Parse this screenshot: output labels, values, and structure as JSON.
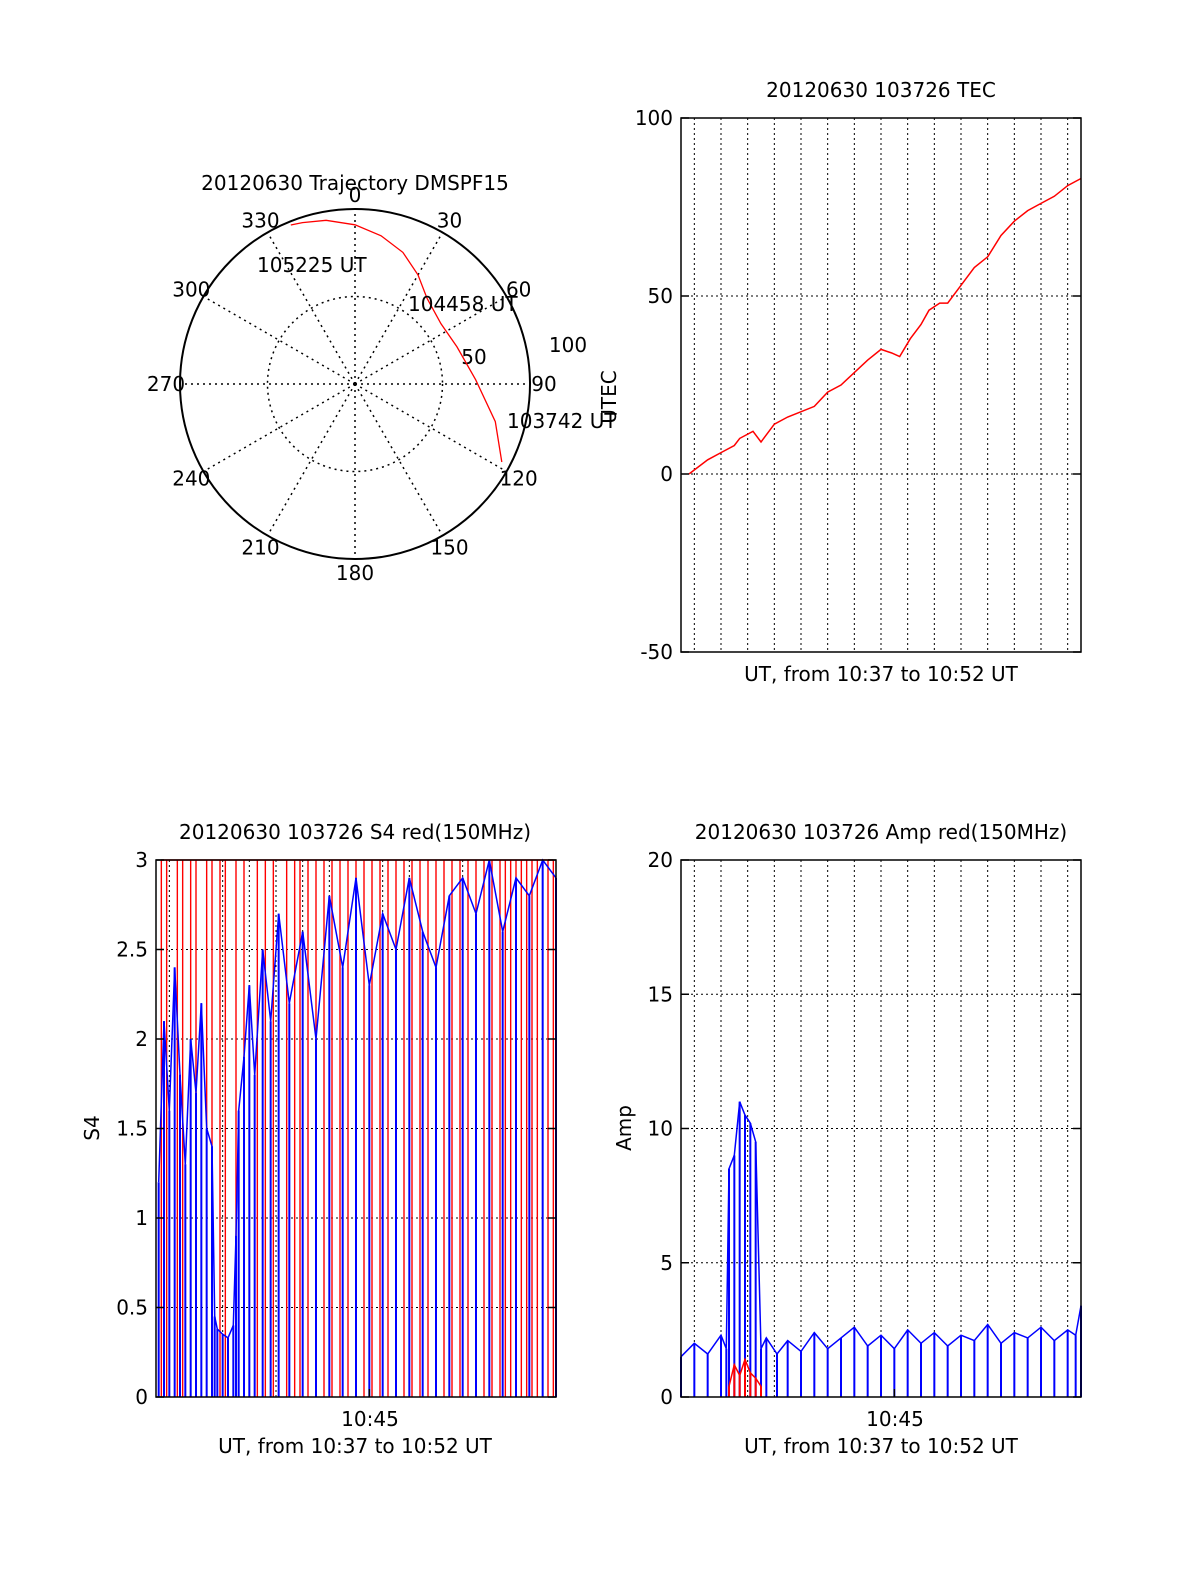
{
  "colors": {
    "primary": "#ff0000",
    "secondary": "#0000ff",
    "axis": "#000000"
  },
  "chart_data": [
    {
      "type": "polar",
      "title": "20120630 Trajectory DMSPF15",
      "angle_ticks": [
        "0",
        "30",
        "60",
        "90",
        "120",
        "150",
        "180",
        "210",
        "240",
        "270",
        "300",
        "330"
      ],
      "radial_ticks": [
        "50",
        "100"
      ],
      "rmax": 100,
      "grid": true,
      "series": [
        {
          "color": "#ff0000",
          "points": [
            [
              118,
              95
            ],
            [
              105,
              83
            ],
            [
              88,
              69
            ],
            [
              70,
              62
            ],
            [
              55,
              60
            ],
            [
              40,
              64
            ],
            [
              30,
              72
            ],
            [
              20,
              80
            ],
            [
              10,
              86
            ],
            [
              0,
              91
            ],
            [
              -10,
              95
            ],
            [
              -18,
              97
            ],
            [
              -22,
              98
            ]
          ]
        }
      ],
      "annotations": [
        {
          "text": "103742 UT",
          "az": 118,
          "r": 95
        },
        {
          "text": "104458 UT",
          "az": 60,
          "r": 60
        },
        {
          "text": "105225 UT",
          "az": -22,
          "r": 98
        }
      ]
    },
    {
      "type": "line",
      "title": "20120630 103726 TEC",
      "xlabel": "UT, from 10:37 to 10:52 UT",
      "ylabel": "UTEC",
      "xlim": [
        0,
        15
      ],
      "ylim": [
        -50,
        100
      ],
      "yticks": [
        "-50",
        "0",
        "50",
        "100"
      ],
      "grid": true,
      "series": [
        {
          "color": "#ff0000",
          "x": [
            0.3,
            1.0,
            1.5,
            2.0,
            2.2,
            2.7,
            3.0,
            3.5,
            4.0,
            5.0,
            5.5,
            6.0,
            7.0,
            7.5,
            7.9,
            8.2,
            8.6,
            9.0,
            9.3,
            9.7,
            10.0,
            10.5,
            11.0,
            11.5,
            12.0,
            12.5,
            13.0,
            13.5,
            14.0,
            14.5,
            15.0
          ],
          "y": [
            0,
            4,
            6,
            8,
            10,
            12,
            9,
            14,
            16,
            19,
            23,
            25,
            32,
            35,
            34,
            33,
            38,
            42,
            46,
            48,
            48,
            53,
            58,
            61,
            67,
            71,
            74,
            76,
            78,
            81,
            83
          ]
        }
      ]
    },
    {
      "type": "line",
      "title": "20120630 103726 S4 red(150MHz)",
      "xlabel": "UT, from 10:37 to 10:52 UT",
      "ylabel": "S4",
      "xlim": [
        0,
        15
      ],
      "ylim": [
        0,
        3
      ],
      "yticks": [
        "0",
        "0.5",
        "1",
        "1.5",
        "2",
        "2.5",
        "3"
      ],
      "xtick_label": "10:45",
      "xtick_value": 8,
      "grid": true,
      "series": [
        {
          "color": "#ff0000",
          "x": [
            0.2,
            0.4,
            0.8,
            1.0,
            1.3,
            1.5,
            1.9,
            2.1,
            2.4,
            2.6,
            3.0,
            3.3,
            3.8,
            4.1,
            4.4,
            4.9,
            5.2,
            5.4,
            5.7,
            6.0,
            6.3,
            6.6,
            6.9,
            7.2,
            7.5,
            7.8,
            8.1,
            8.4,
            8.7,
            9.0,
            9.3,
            9.6,
            9.9,
            10.2,
            10.5,
            10.8,
            11.1,
            11.4,
            11.7,
            12.0,
            12.3,
            12.6,
            12.9,
            13.1,
            13.3,
            13.5,
            13.7,
            13.9,
            14.1,
            14.3,
            14.5,
            14.7,
            14.9
          ],
          "y": [
            3.0,
            3.0,
            3.0,
            3.0,
            3.0,
            3.0,
            3.0,
            3.0,
            3.0,
            3.0,
            3.0,
            3.0,
            3.0,
            3.0,
            3.0,
            3.0,
            3.0,
            3.0,
            3.0,
            3.0,
            3.0,
            3.0,
            3.0,
            3.0,
            3.0,
            3.0,
            3.0,
            3.0,
            3.0,
            3.0,
            3.0,
            3.0,
            3.0,
            3.0,
            3.0,
            3.0,
            3.0,
            3.0,
            3.0,
            3.0,
            3.0,
            3.0,
            3.0,
            3.0,
            3.0,
            3.0,
            3.0,
            3.0,
            3.0,
            3.0,
            3.0,
            3.0,
            3.0
          ]
        },
        {
          "color": "#0000ff",
          "x": [
            0.1,
            0.3,
            0.5,
            0.7,
            0.9,
            1.1,
            1.3,
            1.5,
            1.7,
            1.9,
            2.1,
            2.2,
            2.3,
            2.5,
            2.7,
            2.9,
            3.0,
            3.1,
            3.3,
            3.5,
            3.7,
            4.0,
            4.3,
            4.6,
            5.0,
            5.5,
            6.0,
            6.5,
            7.0,
            7.5,
            8.0,
            8.5,
            9.0,
            9.5,
            10.0,
            10.5,
            11.0,
            11.5,
            12.0,
            12.5,
            13.0,
            13.5,
            14.0,
            14.5,
            15.0
          ],
          "y": [
            1.2,
            2.1,
            1.6,
            2.4,
            1.8,
            1.3,
            2.0,
            1.7,
            2.2,
            1.5,
            1.4,
            0.45,
            0.38,
            0.35,
            0.33,
            0.4,
            0.9,
            1.6,
            1.9,
            2.3,
            1.8,
            2.5,
            2.1,
            2.7,
            2.2,
            2.6,
            2.0,
            2.8,
            2.4,
            2.9,
            2.3,
            2.7,
            2.5,
            2.9,
            2.6,
            2.4,
            2.8,
            2.9,
            2.7,
            3.0,
            2.6,
            2.9,
            2.8,
            3.0,
            2.9
          ]
        }
      ]
    },
    {
      "type": "line",
      "title": "20120630 103726 Amp red(150MHz)",
      "xlabel": "UT, from 10:37 to 10:52 UT",
      "ylabel": "Amp",
      "xlim": [
        0,
        15
      ],
      "ylim": [
        0,
        20
      ],
      "yticks": [
        "0",
        "5",
        "10",
        "15",
        "20"
      ],
      "xtick_label": "10:45",
      "xtick_value": 8,
      "grid": true,
      "series": [
        {
          "color": "#0000ff",
          "x": [
            0.0,
            0.5,
            1.0,
            1.5,
            1.7,
            1.8,
            2.0,
            2.2,
            2.4,
            2.6,
            2.8,
            3.0,
            3.2,
            3.6,
            4.0,
            4.5,
            5.0,
            5.5,
            6.0,
            6.5,
            7.0,
            7.5,
            8.0,
            8.5,
            9.0,
            9.5,
            10.0,
            10.5,
            11.0,
            11.5,
            12.0,
            12.5,
            13.0,
            13.5,
            14.0,
            14.5,
            14.8,
            15.0
          ],
          "y": [
            1.5,
            2.0,
            1.6,
            2.3,
            1.8,
            8.5,
            9.0,
            11.0,
            10.5,
            10.2,
            9.5,
            1.8,
            2.2,
            1.6,
            2.1,
            1.7,
            2.4,
            1.8,
            2.2,
            2.6,
            1.9,
            2.3,
            1.8,
            2.5,
            2.0,
            2.4,
            1.9,
            2.3,
            2.1,
            2.7,
            2.0,
            2.4,
            2.2,
            2.6,
            2.1,
            2.5,
            2.3,
            3.4
          ]
        },
        {
          "color": "#ff0000",
          "x": [
            1.8,
            2.0,
            2.2,
            2.4,
            2.6,
            2.8,
            3.0
          ],
          "y": [
            0.4,
            1.2,
            0.8,
            1.4,
            0.9,
            0.7,
            0.4
          ]
        }
      ]
    }
  ]
}
